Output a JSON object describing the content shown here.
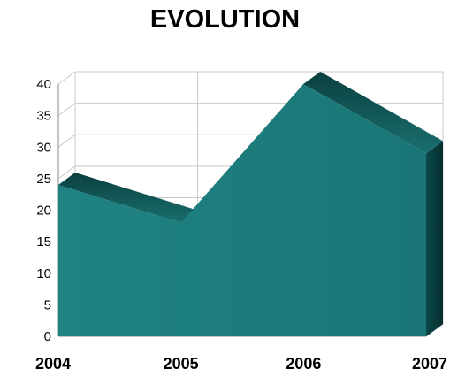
{
  "colors": {
    "area_front": "#1e7f7f",
    "area_top": "#0f5a5a",
    "area_side": "#0b4848",
    "grid": "#c8c8c8",
    "axis": "#888888"
  },
  "chart_data": {
    "type": "area",
    "title": "EVOLUTION",
    "xlabel": "",
    "ylabel": "",
    "categories": [
      "2004",
      "2005",
      "2006",
      "2007"
    ],
    "series": [
      {
        "values": [
          24,
          18,
          40,
          29
        ]
      }
    ],
    "ylim": [
      0,
      40
    ],
    "yticks": [
      0,
      5,
      10,
      15,
      20,
      25,
      30,
      35,
      40
    ],
    "grid": true,
    "legend": "none",
    "style": "3d"
  }
}
